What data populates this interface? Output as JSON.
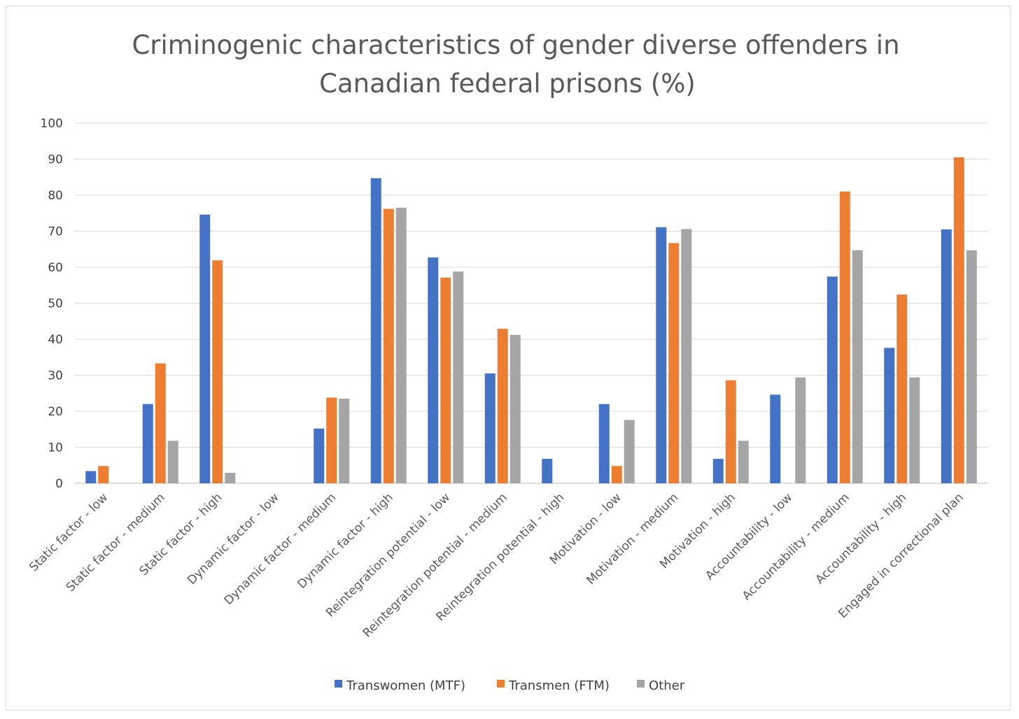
{
  "chart_data": {
    "type": "bar",
    "title_lines": [
      "Criminogenic characteristics of gender diverse offenders in",
      "Canadian federal prisons (%)"
    ],
    "categories": [
      "Static factor - low",
      "Static factor - medium",
      "Static factor - high",
      "Dynamic factor - low",
      "Dynamic factor - medium",
      "Dynamic factor - high",
      "Reintegration potential - low",
      "Reintegration potential - medium",
      "Reintegration potential - high",
      "Motivation - low",
      "Motivation - medium",
      "Motivation - high",
      "Accountability - low",
      "Accountability - medium",
      "Accountability - high",
      "Engaged in correctional plan"
    ],
    "series": [
      {
        "name": "Transwomen (MTF)",
        "color": "#4472C4",
        "values": [
          3.4,
          22,
          74.6,
          0,
          15.2,
          84.7,
          62.7,
          30.5,
          6.8,
          22,
          71.1,
          6.8,
          24.6,
          57.4,
          37.6,
          70.5
        ]
      },
      {
        "name": "Transmen (FTM)",
        "color": "#ED7D31",
        "values": [
          4.8,
          33.3,
          61.9,
          0,
          23.8,
          76.2,
          57.1,
          42.9,
          0,
          4.8,
          66.7,
          28.6,
          0,
          81,
          52.4,
          90.5
        ]
      },
      {
        "name": "Other",
        "color": "#A5A5A5",
        "values": [
          0,
          11.8,
          2.9,
          0,
          23.5,
          76.5,
          58.8,
          41.2,
          0,
          17.6,
          70.6,
          11.8,
          29.4,
          64.7,
          29.4,
          64.7
        ]
      }
    ],
    "ylim": [
      0,
      100
    ],
    "yticks": [
      "0",
      "10",
      "20",
      "30",
      "40",
      "50",
      "60",
      "70",
      "80",
      "90",
      "100"
    ],
    "grid": true,
    "legend": "bottom"
  }
}
